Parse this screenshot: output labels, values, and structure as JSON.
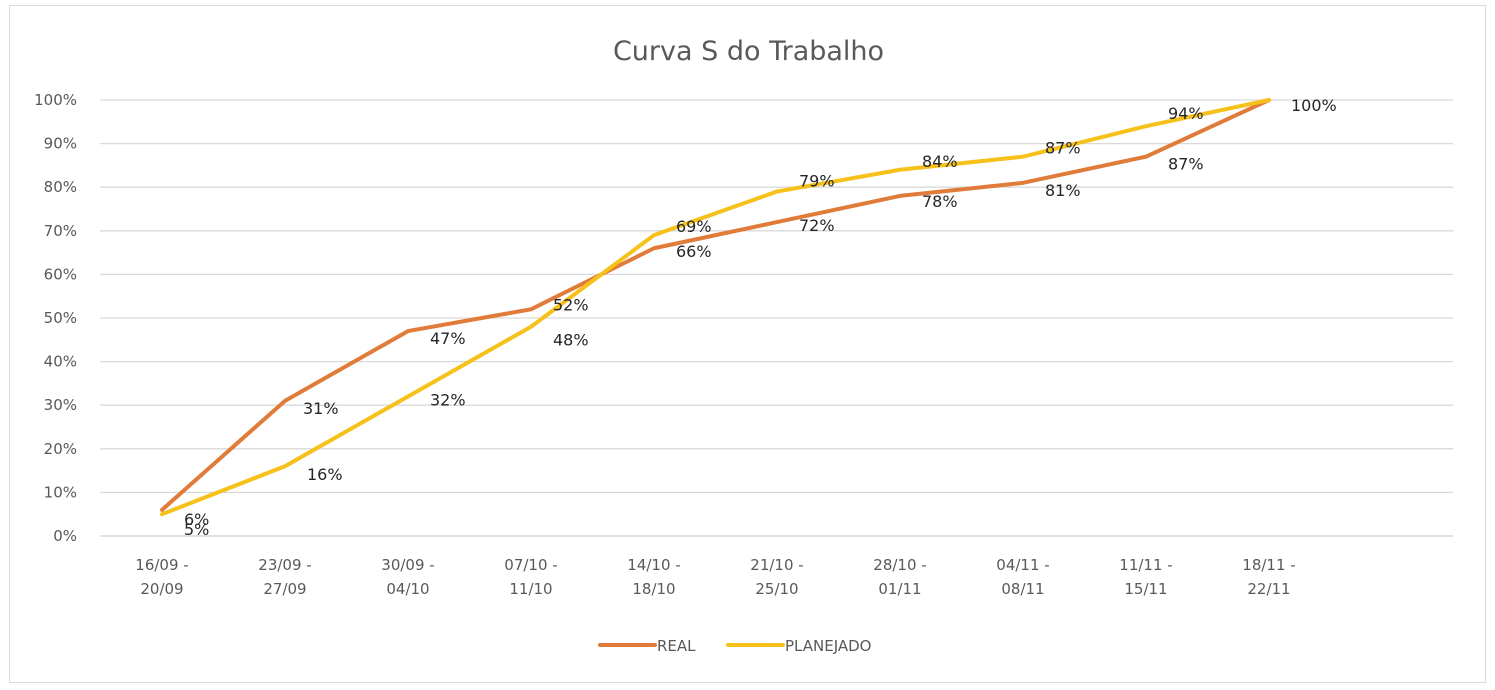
{
  "chart_data": {
    "type": "line",
    "title": "Curva S do Trabalho",
    "xlabel": "",
    "ylabel": "",
    "ylim": [
      0,
      100
    ],
    "yticks": [
      "0%",
      "10%",
      "20%",
      "30%",
      "40%",
      "50%",
      "60%",
      "70%",
      "80%",
      "90%",
      "100%"
    ],
    "grid": true,
    "legend_position": "bottom",
    "categories": [
      [
        "16/09 -",
        "20/09"
      ],
      [
        "23/09 -",
        "27/09"
      ],
      [
        "30/09 -",
        "04/10"
      ],
      [
        "07/10 -",
        "11/10"
      ],
      [
        "14/10 -",
        "18/10"
      ],
      [
        "21/10 -",
        "25/10"
      ],
      [
        "28/10 -",
        "01/11"
      ],
      [
        "04/11 -",
        "08/11"
      ],
      [
        "11/11 -",
        "15/11"
      ],
      [
        "18/11 -",
        "22/11"
      ]
    ],
    "series": [
      {
        "name": "REAL",
        "color": "#E07B39",
        "values": [
          6,
          31,
          47,
          52,
          66,
          72,
          78,
          81,
          87,
          100
        ]
      },
      {
        "name": "PLANEJADO",
        "color": "#F5C11A",
        "values": [
          5,
          16,
          32,
          48,
          69,
          79,
          84,
          87,
          94,
          100
        ]
      }
    ],
    "data_labels": {
      "REAL": [
        "6%",
        "31%",
        "47%",
        "52%",
        "66%",
        "72%",
        "78%",
        "81%",
        "87%",
        "100%"
      ],
      "PLANEJADO": [
        "5%",
        "16%",
        "32%",
        "48%",
        "69%",
        "79%",
        "84%",
        "87%",
        "94%",
        "100%"
      ]
    }
  }
}
